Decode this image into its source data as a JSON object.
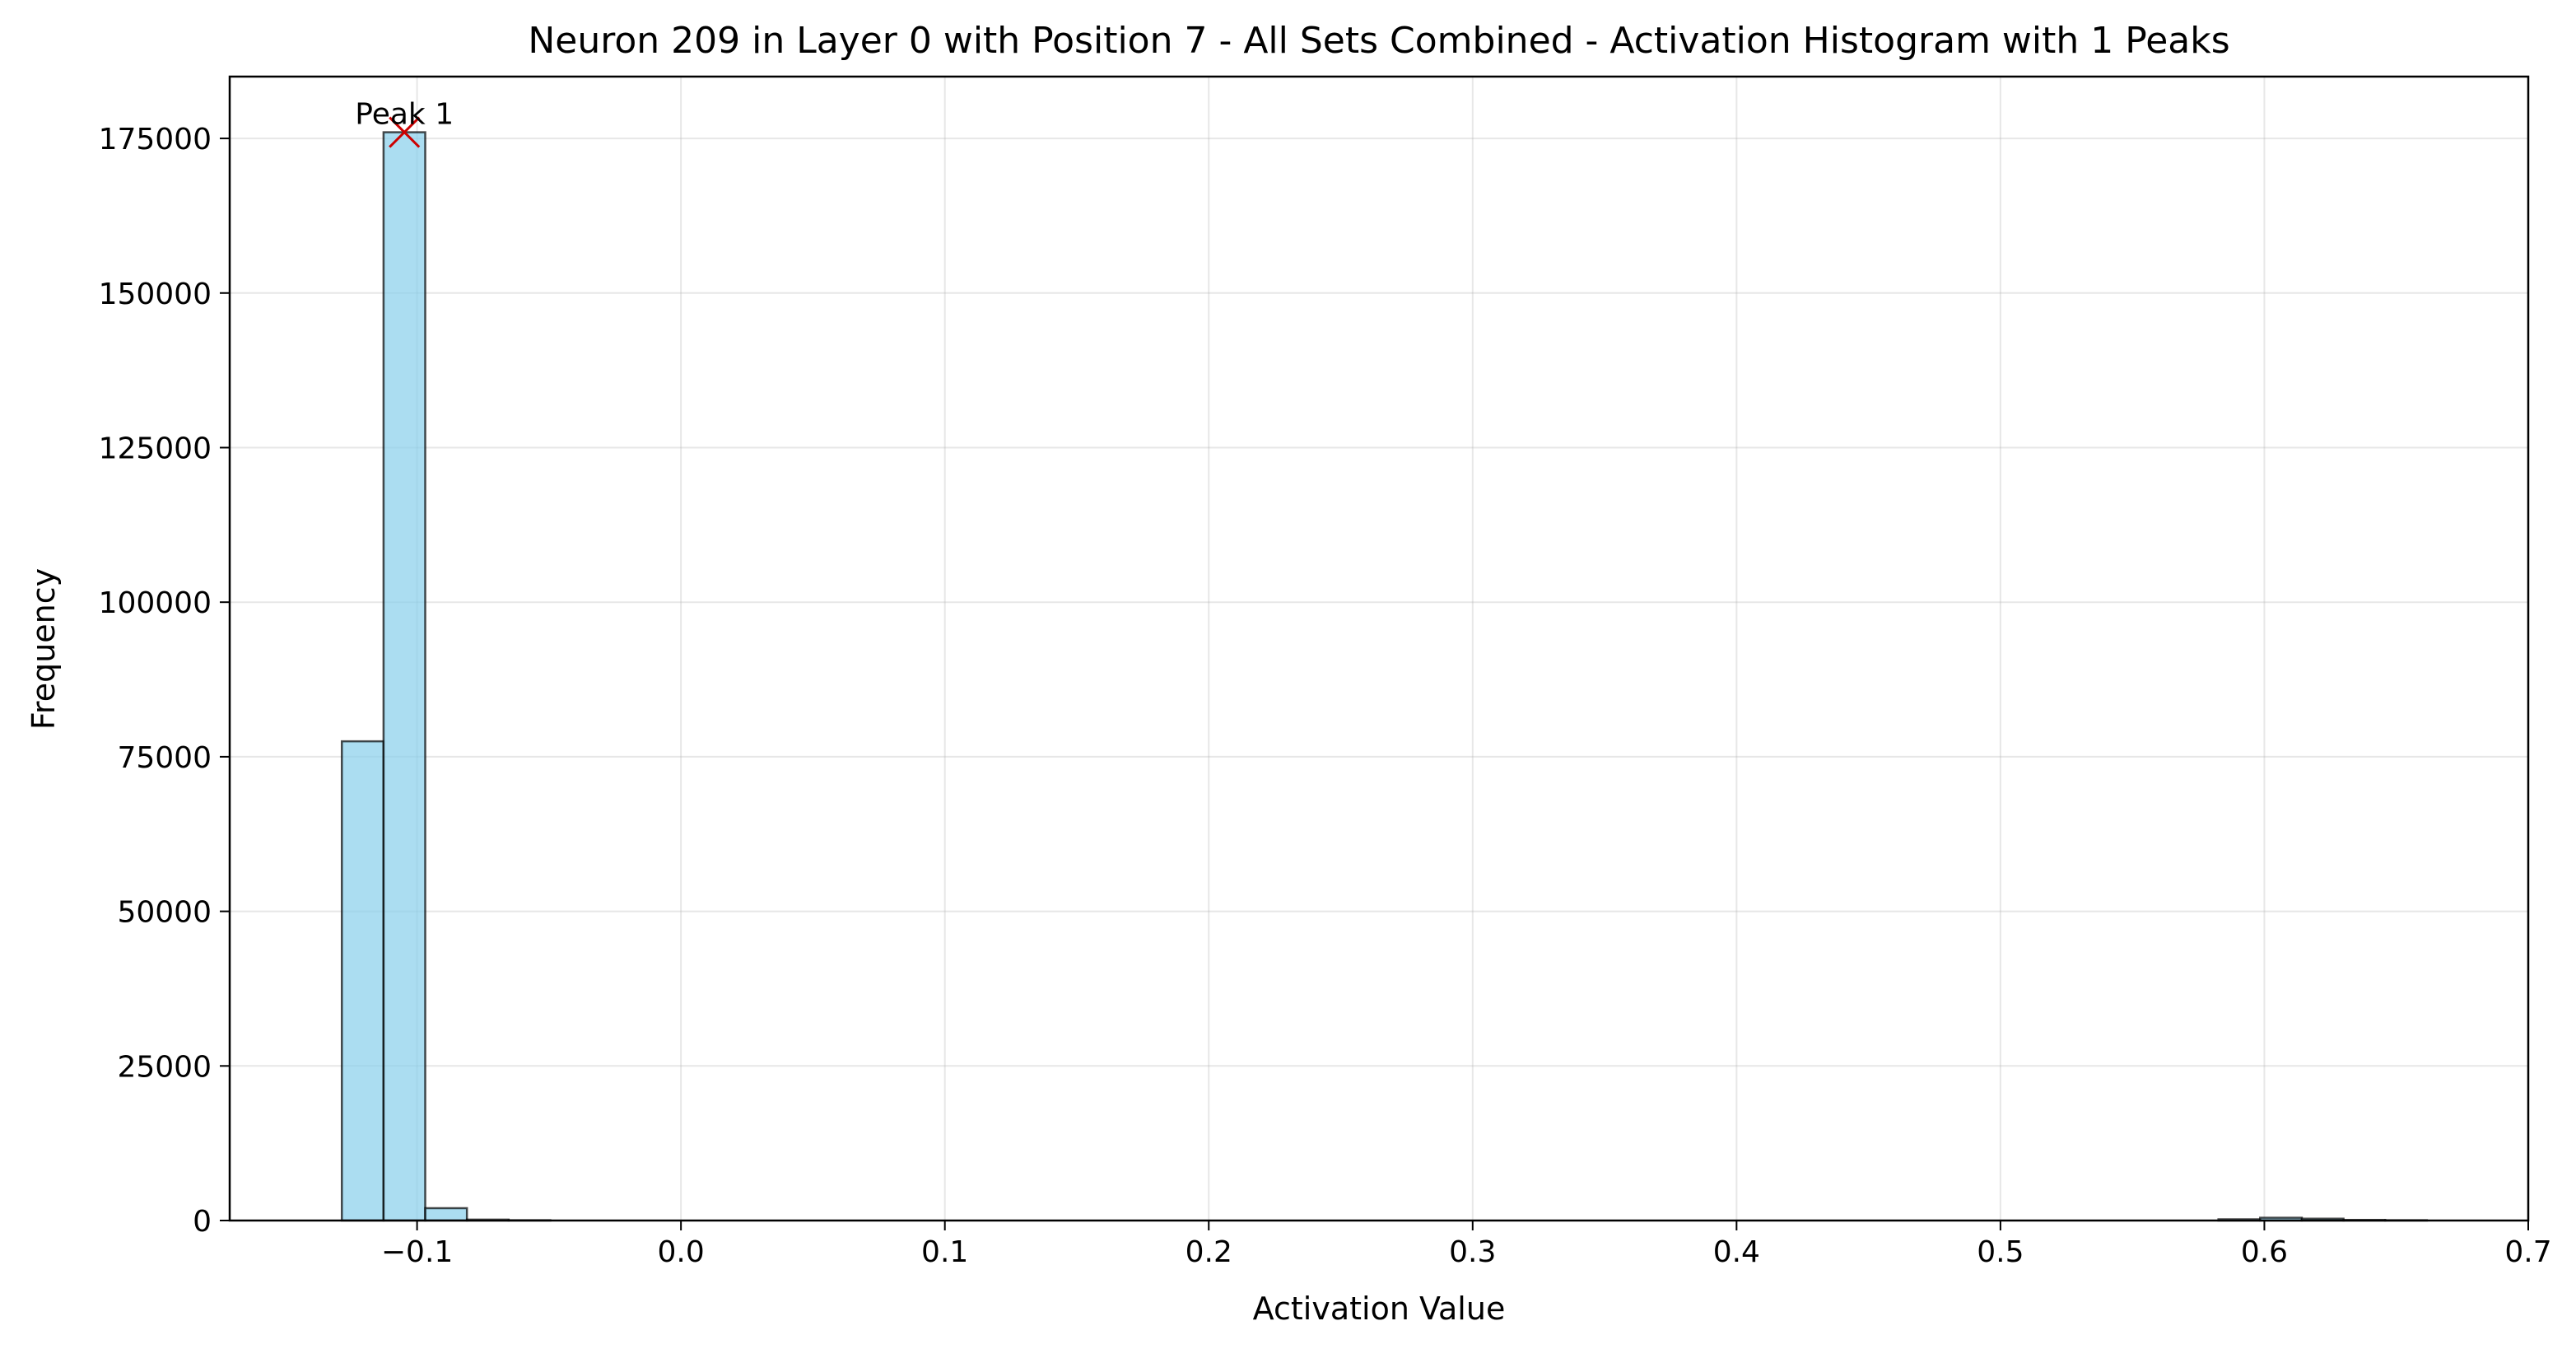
{
  "chart_data": {
    "type": "bar",
    "title": "Neuron 209 in Layer 0 with Position 7 - All Sets Combined - Activation Histogram with 1 Peaks",
    "xlabel": "Activation Value",
    "ylabel": "Frequency",
    "xlim": [
      -0.171,
      0.7
    ],
    "ylim": [
      0,
      185000
    ],
    "xticks": [
      -0.1,
      0.0,
      0.1,
      0.2,
      0.3,
      0.4,
      0.5,
      0.6,
      0.7
    ],
    "xtick_labels": [
      "−0.1",
      "0.0",
      "0.1",
      "0.2",
      "0.3",
      "0.4",
      "0.5",
      "0.6",
      "0.7"
    ],
    "yticks": [
      0,
      25000,
      50000,
      75000,
      100000,
      125000,
      150000,
      175000
    ],
    "ytick_labels": [
      "0",
      "25000",
      "50000",
      "75000",
      "100000",
      "125000",
      "150000",
      "175000"
    ],
    "grid": true,
    "bar_color": "#87CEEB",
    "bar_edge_color": "#000000",
    "bins": [
      {
        "x0": -0.1285,
        "x1": -0.1127,
        "count": 77500
      },
      {
        "x0": -0.1127,
        "x1": -0.0969,
        "count": 176000
      },
      {
        "x0": -0.0969,
        "x1": -0.0811,
        "count": 2000
      },
      {
        "x0": -0.0811,
        "x1": -0.0653,
        "count": 150
      },
      {
        "x0": -0.0653,
        "x1": -0.0495,
        "count": 50
      },
      {
        "x0": 0.5826,
        "x1": 0.5984,
        "count": 200
      },
      {
        "x0": 0.5984,
        "x1": 0.6142,
        "count": 450
      },
      {
        "x0": 0.6142,
        "x1": 0.63,
        "count": 300
      },
      {
        "x0": 0.63,
        "x1": 0.6458,
        "count": 100
      },
      {
        "x0": 0.6458,
        "x1": 0.6616,
        "count": 50
      }
    ],
    "peaks": [
      {
        "label": "Peak 1",
        "x": -0.1048,
        "y": 176000,
        "marker": "x",
        "color": "#CC0000"
      }
    ]
  }
}
